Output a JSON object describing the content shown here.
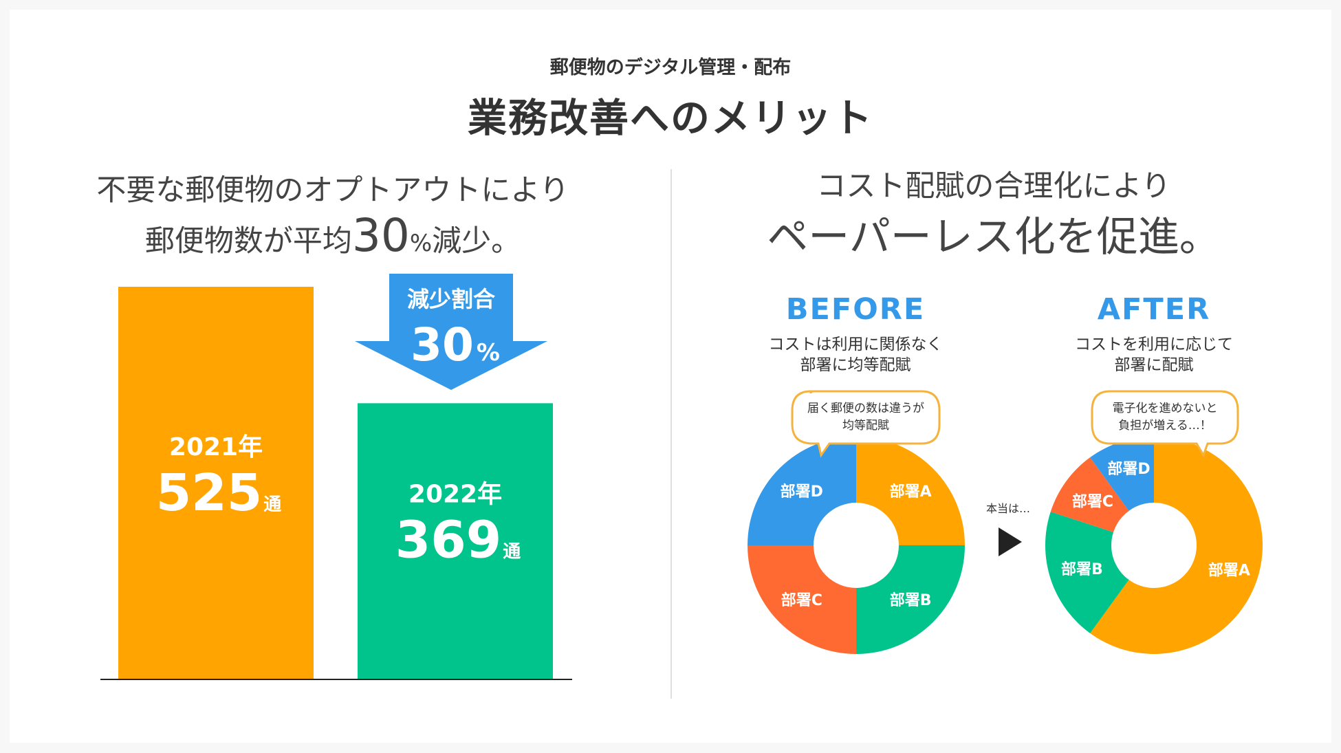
{
  "header": {
    "subtitle": "郵便物のデジタル管理・配布",
    "title": "業務改善へのメリット"
  },
  "left": {
    "headline_line1": "不要な郵便物のオプトアウトにより",
    "headline_line2_prefix": "郵便物数が平均",
    "headline_number": "30",
    "headline_percent": "%",
    "headline_suffix": "減少。",
    "arrow_label": "減少割合",
    "arrow_value": "30",
    "arrow_unit": "%",
    "unit_suffix": "通"
  },
  "right": {
    "headline_line1": "コスト配賦の合理化により",
    "headline_line2": "ペーパーレス化を促進。",
    "middle_label": "本当は…",
    "before": {
      "title": "BEFORE",
      "desc_line1": "コストは利用に関係なく",
      "desc_line2": "部署に均等配賦",
      "bubble_line1": "届く郵便の数は違うが",
      "bubble_line2": "均等配賦"
    },
    "after": {
      "title": "AFTER",
      "desc_line1": "コストを利用に応じて",
      "desc_line2": "部署に配賦",
      "bubble_line1": "電子化を進めないと",
      "bubble_line2": "負担が増える…！"
    }
  },
  "colors": {
    "orange": "#FFA400",
    "green": "#00C48C",
    "blue": "#3399E8",
    "red": "#FF6A33",
    "title_blue": "#3399E8",
    "bubble_border": "#F5B23C"
  },
  "chart_data": [
    {
      "type": "bar",
      "categories": [
        "2021年",
        "2022年"
      ],
      "values": [
        525,
        369
      ],
      "value_unit": "通",
      "ylim": [
        0,
        525
      ],
      "colors": [
        "#FFA400",
        "#00C48C"
      ]
    },
    {
      "type": "pie",
      "title": "BEFORE",
      "labels": [
        "部署A",
        "部署B",
        "部署C",
        "部署D"
      ],
      "values": [
        25,
        25,
        25,
        25
      ],
      "colors": [
        "#FFA400",
        "#00C48C",
        "#FF6A33",
        "#3399E8"
      ]
    },
    {
      "type": "pie",
      "title": "AFTER",
      "labels": [
        "部署A",
        "部署B",
        "部署C",
        "部署D"
      ],
      "values": [
        60,
        20,
        10,
        10
      ],
      "colors": [
        "#FFA400",
        "#00C48C",
        "#FF6A33",
        "#3399E8"
      ]
    }
  ]
}
